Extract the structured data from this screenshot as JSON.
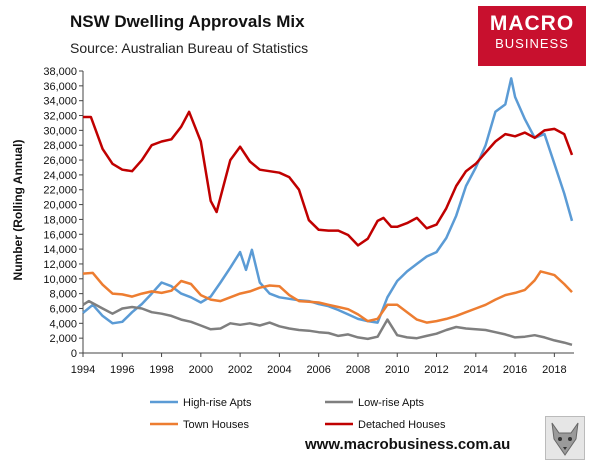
{
  "header": {
    "title": "NSW Dwelling Approvals Mix",
    "subtitle": "Source: Australian Bureau of Statistics"
  },
  "logo": {
    "line1": "MACRO",
    "line2": "BUSINESS"
  },
  "footer": {
    "url": "www.macrobusiness.com.au"
  },
  "colors": {
    "high_rise": "#5b9bd5",
    "low_rise": "#7f7f7f",
    "town_houses": "#ed7d31",
    "detached": "#c00000",
    "brand": "#c8102e"
  },
  "chart_data": {
    "type": "line",
    "title": "NSW Dwelling Approvals Mix",
    "xlabel": "",
    "ylabel": "Number (Rolling Annual)",
    "xlim": [
      1994,
      2019
    ],
    "ylim": [
      0,
      38000
    ],
    "x_ticks": [
      "1994",
      "1996",
      "1998",
      "2000",
      "2002",
      "2004",
      "2006",
      "2008",
      "2010",
      "2012",
      "2014",
      "2016",
      "2018"
    ],
    "y_ticks": [
      "0",
      "2,000",
      "4,000",
      "6,000",
      "8,000",
      "10,000",
      "12,000",
      "14,000",
      "16,000",
      "18,000",
      "20,000",
      "22,000",
      "24,000",
      "26,000",
      "28,000",
      "30,000",
      "32,000",
      "34,000",
      "36,000",
      "38,000"
    ],
    "legend_position": "bottom",
    "series": [
      {
        "name": "High-rise Apts",
        "color": "#5b9bd5",
        "points": [
          [
            1994,
            5400
          ],
          [
            1994.5,
            6500
          ],
          [
            1995,
            5000
          ],
          [
            1995.5,
            4000
          ],
          [
            1996,
            4200
          ],
          [
            1996.5,
            5500
          ],
          [
            1997,
            6600
          ],
          [
            1997.5,
            8000
          ],
          [
            1998,
            9500
          ],
          [
            1998.5,
            9000
          ],
          [
            1999,
            8000
          ],
          [
            1999.5,
            7500
          ],
          [
            2000,
            6800
          ],
          [
            2000.5,
            7600
          ],
          [
            2001,
            9500
          ],
          [
            2001.5,
            11500
          ],
          [
            2002,
            13600
          ],
          [
            2002.3,
            11200
          ],
          [
            2002.6,
            13900
          ],
          [
            2003,
            9500
          ],
          [
            2003.5,
            8000
          ],
          [
            2004,
            7500
          ],
          [
            2004.5,
            7300
          ],
          [
            2005,
            7100
          ],
          [
            2005.5,
            7000
          ],
          [
            2006,
            6600
          ],
          [
            2006.5,
            6300
          ],
          [
            2007,
            5800
          ],
          [
            2007.5,
            5200
          ],
          [
            2008,
            4600
          ],
          [
            2008.5,
            4300
          ],
          [
            2009,
            4100
          ],
          [
            2009.5,
            7500
          ],
          [
            2010,
            9700
          ],
          [
            2010.5,
            11000
          ],
          [
            2011,
            12000
          ],
          [
            2011.5,
            13000
          ],
          [
            2012,
            13600
          ],
          [
            2012.5,
            15500
          ],
          [
            2013,
            18500
          ],
          [
            2013.5,
            22500
          ],
          [
            2014,
            25000
          ],
          [
            2014.5,
            28000
          ],
          [
            2015,
            32500
          ],
          [
            2015.5,
            33500
          ],
          [
            2015.8,
            37000
          ],
          [
            2016,
            34500
          ],
          [
            2016.5,
            31500
          ],
          [
            2017,
            29000
          ],
          [
            2017.5,
            29500
          ],
          [
            2018,
            25500
          ],
          [
            2018.5,
            21500
          ],
          [
            2018.9,
            17800
          ]
        ]
      },
      {
        "name": "Low-rise Apts",
        "color": "#7f7f7f",
        "points": [
          [
            1994,
            6500
          ],
          [
            1994.3,
            7000
          ],
          [
            1995,
            6000
          ],
          [
            1995.5,
            5300
          ],
          [
            1996,
            6000
          ],
          [
            1996.5,
            6200
          ],
          [
            1997,
            6000
          ],
          [
            1997.5,
            5500
          ],
          [
            1998,
            5300
          ],
          [
            1998.5,
            5000
          ],
          [
            1999,
            4500
          ],
          [
            1999.5,
            4200
          ],
          [
            2000,
            3700
          ],
          [
            2000.5,
            3200
          ],
          [
            2001,
            3300
          ],
          [
            2001.5,
            4000
          ],
          [
            2002,
            3800
          ],
          [
            2002.5,
            4000
          ],
          [
            2003,
            3700
          ],
          [
            2003.5,
            4100
          ],
          [
            2004,
            3600
          ],
          [
            2004.5,
            3300
          ],
          [
            2005,
            3100
          ],
          [
            2005.5,
            3000
          ],
          [
            2006,
            2800
          ],
          [
            2006.5,
            2700
          ],
          [
            2007,
            2300
          ],
          [
            2007.5,
            2500
          ],
          [
            2008,
            2100
          ],
          [
            2008.5,
            1900
          ],
          [
            2009,
            2200
          ],
          [
            2009.5,
            4500
          ],
          [
            2010,
            2400
          ],
          [
            2010.5,
            2100
          ],
          [
            2011,
            2000
          ],
          [
            2011.5,
            2300
          ],
          [
            2012,
            2600
          ],
          [
            2012.5,
            3100
          ],
          [
            2013,
            3500
          ],
          [
            2013.5,
            3300
          ],
          [
            2014,
            3200
          ],
          [
            2014.5,
            3100
          ],
          [
            2015,
            2800
          ],
          [
            2015.5,
            2500
          ],
          [
            2016,
            2100
          ],
          [
            2016.5,
            2200
          ],
          [
            2017,
            2400
          ],
          [
            2017.5,
            2100
          ],
          [
            2018,
            1700
          ],
          [
            2018.5,
            1400
          ],
          [
            2018.9,
            1100
          ]
        ]
      },
      {
        "name": "Town Houses",
        "color": "#ed7d31",
        "points": [
          [
            1994,
            10700
          ],
          [
            1994.5,
            10800
          ],
          [
            1995,
            9200
          ],
          [
            1995.5,
            8000
          ],
          [
            1996,
            7900
          ],
          [
            1996.5,
            7600
          ],
          [
            1997,
            8000
          ],
          [
            1997.5,
            8300
          ],
          [
            1998,
            8100
          ],
          [
            1998.5,
            8400
          ],
          [
            1999,
            9700
          ],
          [
            1999.5,
            9300
          ],
          [
            2000,
            7800
          ],
          [
            2000.5,
            7200
          ],
          [
            2001,
            7000
          ],
          [
            2001.5,
            7500
          ],
          [
            2002,
            8000
          ],
          [
            2002.5,
            8300
          ],
          [
            2003,
            8800
          ],
          [
            2003.5,
            9100
          ],
          [
            2004,
            9000
          ],
          [
            2004.5,
            7800
          ],
          [
            2005,
            7000
          ],
          [
            2005.5,
            6900
          ],
          [
            2006,
            6800
          ],
          [
            2006.5,
            6500
          ],
          [
            2007,
            6200
          ],
          [
            2007.5,
            5900
          ],
          [
            2008,
            5200
          ],
          [
            2008.5,
            4300
          ],
          [
            2009,
            4600
          ],
          [
            2009.5,
            6500
          ],
          [
            2010,
            6500
          ],
          [
            2010.5,
            5500
          ],
          [
            2011,
            4500
          ],
          [
            2011.5,
            4100
          ],
          [
            2012,
            4300
          ],
          [
            2012.5,
            4600
          ],
          [
            2013,
            5000
          ],
          [
            2013.5,
            5500
          ],
          [
            2014,
            6000
          ],
          [
            2014.5,
            6500
          ],
          [
            2015,
            7200
          ],
          [
            2015.5,
            7800
          ],
          [
            2016,
            8100
          ],
          [
            2016.5,
            8500
          ],
          [
            2017,
            9800
          ],
          [
            2017.3,
            11000
          ],
          [
            2017.6,
            10800
          ],
          [
            2018,
            10500
          ],
          [
            2018.5,
            9300
          ],
          [
            2018.9,
            8200
          ]
        ]
      },
      {
        "name": "Detached Houses",
        "color": "#c00000",
        "points": [
          [
            1994,
            31800
          ],
          [
            1994.4,
            31800
          ],
          [
            1995,
            27500
          ],
          [
            1995.5,
            25500
          ],
          [
            1996,
            24700
          ],
          [
            1996.5,
            24500
          ],
          [
            1997,
            26000
          ],
          [
            1997.5,
            28000
          ],
          [
            1998,
            28500
          ],
          [
            1998.5,
            28800
          ],
          [
            1999,
            30500
          ],
          [
            1999.4,
            32500
          ],
          [
            2000,
            28500
          ],
          [
            2000.5,
            20500
          ],
          [
            2000.8,
            19000
          ],
          [
            2001,
            21000
          ],
          [
            2001.5,
            26000
          ],
          [
            2002,
            27800
          ],
          [
            2002.5,
            25800
          ],
          [
            2003,
            24700
          ],
          [
            2003.5,
            24500
          ],
          [
            2004,
            24300
          ],
          [
            2004.5,
            23700
          ],
          [
            2005,
            22000
          ],
          [
            2005.5,
            17900
          ],
          [
            2006,
            16600
          ],
          [
            2006.5,
            16500
          ],
          [
            2007,
            16500
          ],
          [
            2007.5,
            15900
          ],
          [
            2008,
            14500
          ],
          [
            2008.5,
            15400
          ],
          [
            2009,
            17800
          ],
          [
            2009.3,
            18200
          ],
          [
            2009.7,
            17000
          ],
          [
            2010,
            17000
          ],
          [
            2010.5,
            17500
          ],
          [
            2011,
            18200
          ],
          [
            2011.5,
            16800
          ],
          [
            2012,
            17300
          ],
          [
            2012.5,
            19500
          ],
          [
            2013,
            22500
          ],
          [
            2013.5,
            24500
          ],
          [
            2014,
            25500
          ],
          [
            2014.5,
            27000
          ],
          [
            2015,
            28500
          ],
          [
            2015.5,
            29500
          ],
          [
            2016,
            29200
          ],
          [
            2016.5,
            29700
          ],
          [
            2017,
            29000
          ],
          [
            2017.5,
            30000
          ],
          [
            2018,
            30200
          ],
          [
            2018.5,
            29500
          ],
          [
            2018.9,
            26700
          ]
        ]
      }
    ]
  }
}
